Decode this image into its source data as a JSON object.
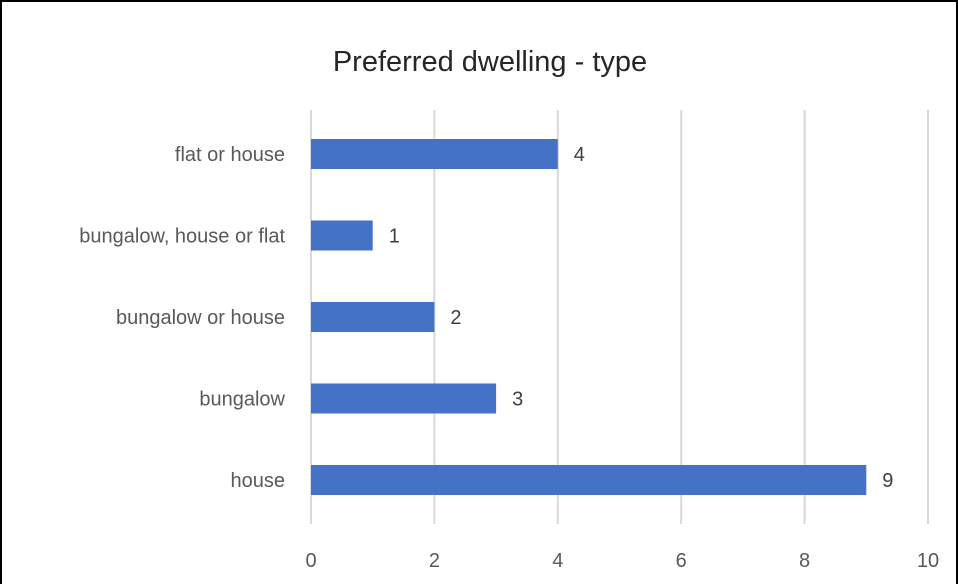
{
  "chart_data": {
    "type": "bar",
    "orientation": "horizontal",
    "title": "Preferred dwelling - type",
    "categories": [
      "flat or house",
      "bungalow, house or flat",
      "bungalow or house",
      "bungalow",
      "house"
    ],
    "values": [
      4,
      1,
      2,
      3,
      9
    ],
    "xlim": [
      0,
      10
    ],
    "x_ticks": [
      0,
      2,
      4,
      6,
      8,
      10
    ],
    "xlabel": "",
    "ylabel": "",
    "grid": true,
    "data_labels": true,
    "bar_color": "#4472C4",
    "grid_color": "#D9D9D9"
  }
}
